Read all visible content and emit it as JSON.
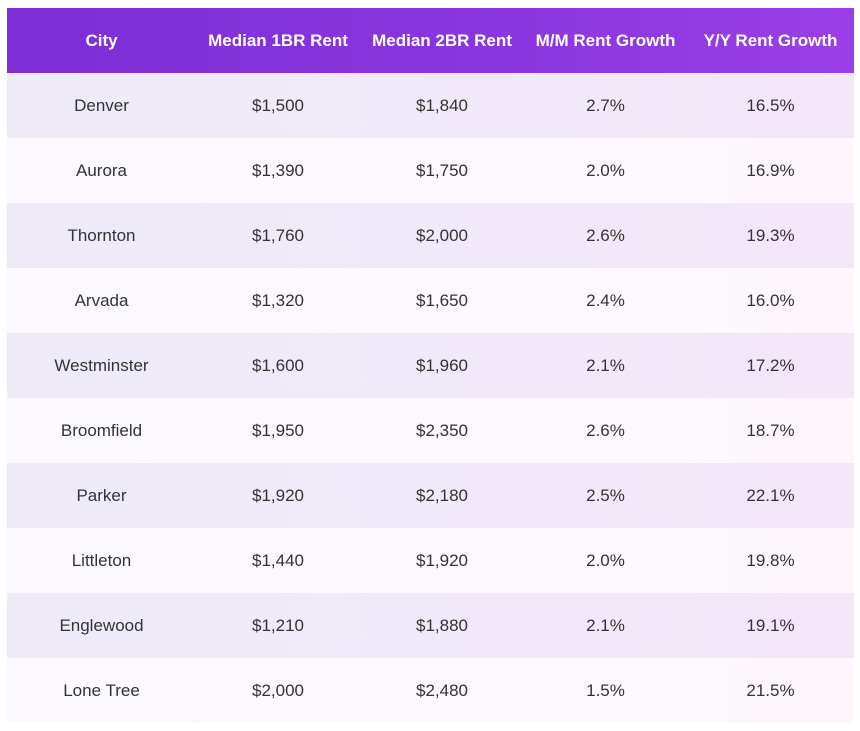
{
  "chart_data": {
    "type": "table",
    "columns": [
      "City",
      "Median 1BR Rent",
      "Median 2BR Rent",
      "M/M Rent Growth",
      "Y/Y Rent Growth"
    ],
    "rows": [
      [
        "Denver",
        "$1,500",
        "$1,840",
        "2.7%",
        "16.5%"
      ],
      [
        "Aurora",
        "$1,390",
        "$1,750",
        "2.0%",
        "16.9%"
      ],
      [
        "Thornton",
        "$1,760",
        "$2,000",
        "2.6%",
        "19.3%"
      ],
      [
        "Arvada",
        "$1,320",
        "$1,650",
        "2.4%",
        "16.0%"
      ],
      [
        "Westminster",
        "$1,600",
        "$1,960",
        "2.1%",
        "17.2%"
      ],
      [
        "Broomfield",
        "$1,950",
        "$2,350",
        "2.6%",
        "18.7%"
      ],
      [
        "Parker",
        "$1,920",
        "$2,180",
        "2.5%",
        "22.1%"
      ],
      [
        "Littleton",
        "$1,440",
        "$1,920",
        "2.0%",
        "19.8%"
      ],
      [
        "Englewood",
        "$1,210",
        "$1,880",
        "2.1%",
        "19.1%"
      ],
      [
        "Lone Tree",
        "$2,000",
        "$2,480",
        "1.5%",
        "21.5%"
      ]
    ],
    "colors": {
      "header": "#8b36e0",
      "header_text": "#ffffff",
      "row_odd": "#f0e9f9",
      "row_even": "#fcf8fd",
      "cell_text": "#333333"
    }
  }
}
